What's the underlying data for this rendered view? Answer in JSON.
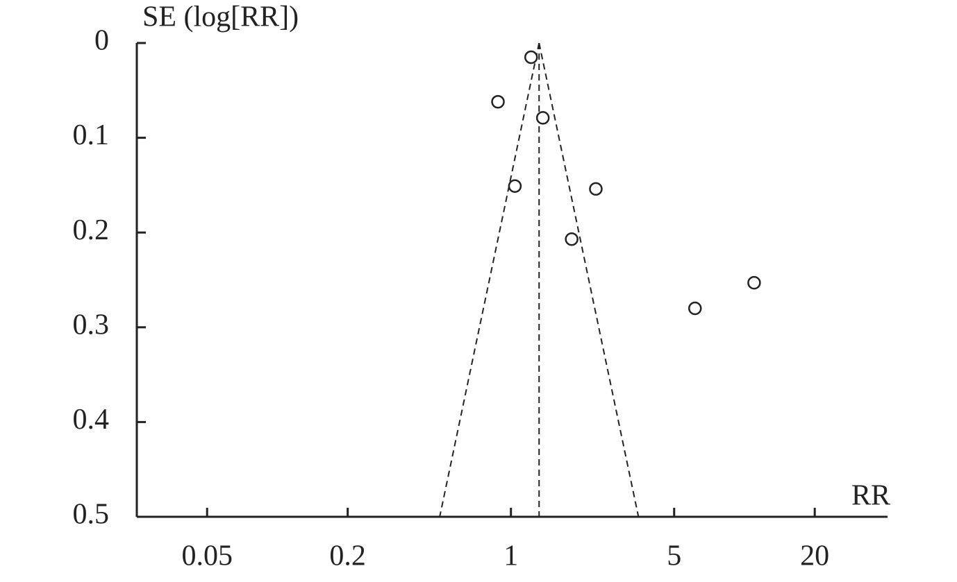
{
  "chart_data": {
    "type": "scatter",
    "ylabel": "SE (log[RR])",
    "xlabel": "RR",
    "x": [
      1.22,
      0.88,
      1.37,
      1.04,
      2.31,
      1.82,
      6.14,
      11.0
    ],
    "series": [
      {
        "values": [
          0.015,
          0.062,
          0.079,
          0.151,
          0.154,
          0.207,
          0.28,
          0.253
        ],
        "color": "#222222"
      }
    ],
    "xlim": [
      0.025,
      41
    ],
    "xticks": [
      0.05,
      0.2,
      1,
      5,
      20
    ],
    "xscale": "log",
    "ylim": [
      0,
      0.5
    ],
    "yticks": [
      0,
      0.1,
      0.2,
      0.3,
      0.4,
      0.5
    ],
    "yinverted": true,
    "reference_rr": 1.32
  }
}
